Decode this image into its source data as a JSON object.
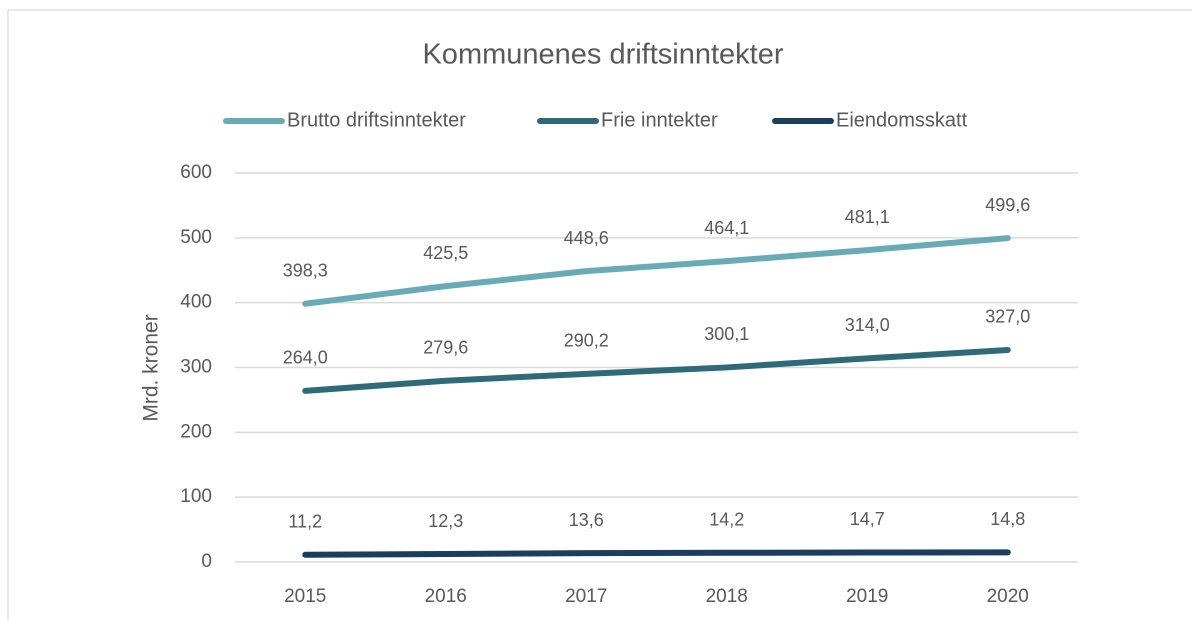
{
  "chart_data": {
    "type": "line",
    "title": "Kommunenes driftsinntekter",
    "y_label": "Mrd. kroner",
    "categories": [
      "2015",
      "2016",
      "2017",
      "2018",
      "2019",
      "2020"
    ],
    "series": [
      {
        "name": "Brutto driftsinntekter",
        "color": "#68abb7",
        "values": [
          398.3,
          425.5,
          448.6,
          464.1,
          481.1,
          499.6
        ],
        "value_labels": [
          "398,3",
          "425,5",
          "448,6",
          "464,1",
          "481,1",
          "499,6"
        ]
      },
      {
        "name": "Frie inntekter",
        "color": "#2e6a79",
        "values": [
          264.0,
          279.6,
          290.2,
          300.1,
          314.0,
          327.0
        ],
        "value_labels": [
          "264,0",
          "279,6",
          "290,2",
          "300,1",
          "314,0",
          "327,0"
        ]
      },
      {
        "name": "Eiendomsskatt",
        "color": "#1a3e5c",
        "values": [
          11.2,
          12.3,
          13.6,
          14.2,
          14.7,
          14.8
        ],
        "value_labels": [
          "11,2",
          "12,3",
          "13,6",
          "14,2",
          "14,7",
          "14,8"
        ]
      }
    ],
    "ylim": [
      0,
      600
    ],
    "yticks": [
      0,
      100,
      200,
      300,
      400,
      500,
      600
    ],
    "grid": true,
    "legend": "top"
  }
}
